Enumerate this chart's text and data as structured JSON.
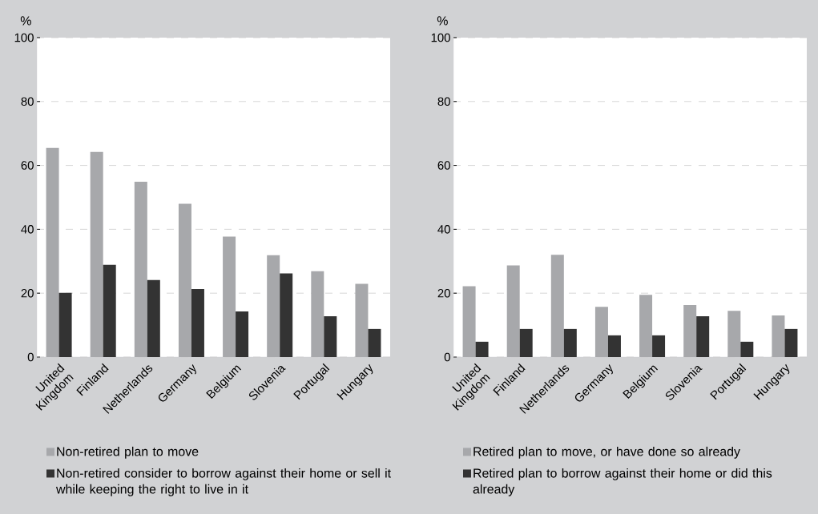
{
  "chart_data": [
    {
      "type": "bar",
      "ylabel": "%",
      "categories": [
        "United Kingdom",
        "Finland",
        "Netherlands",
        "Germany",
        "Belgium",
        "Slovenia",
        "Portugal",
        "Hungary"
      ],
      "series": [
        {
          "name": "Non-retired plan to move",
          "color": "#a7a8ab",
          "values": [
            65.5,
            64.2,
            54.9,
            48.0,
            37.7,
            31.9,
            26.9,
            22.9
          ]
        },
        {
          "name": "Non-retired consider to borrow against their home or sell it while keeping the right to live in it",
          "color": "#333333",
          "values": [
            20.1,
            28.9,
            24.1,
            21.3,
            14.3,
            26.2,
            12.8,
            8.8
          ]
        }
      ],
      "ylim": [
        0,
        100
      ],
      "yticks": [
        0,
        20,
        40,
        60,
        80,
        100
      ],
      "grid": "y",
      "legend": "bottom"
    },
    {
      "type": "bar",
      "ylabel": "%",
      "categories": [
        "United Kingdom",
        "Finland",
        "Netherlands",
        "Germany",
        "Belgium",
        "Slovenia",
        "Portugal",
        "Hungary"
      ],
      "series": [
        {
          "name": "Retired plan to move, or have done so already",
          "color": "#a7a8ab",
          "values": [
            22.2,
            28.7,
            32.0,
            15.7,
            19.5,
            16.3,
            14.5,
            13.0
          ]
        },
        {
          "name": "Retired plan to borrow against their home or did this already",
          "color": "#333333",
          "values": [
            4.8,
            8.8,
            8.8,
            6.8,
            6.8,
            12.8,
            4.8,
            8.8
          ]
        }
      ],
      "ylim": [
        0,
        100
      ],
      "yticks": [
        0,
        20,
        40,
        60,
        80,
        100
      ],
      "grid": "y",
      "legend": "bottom"
    }
  ]
}
